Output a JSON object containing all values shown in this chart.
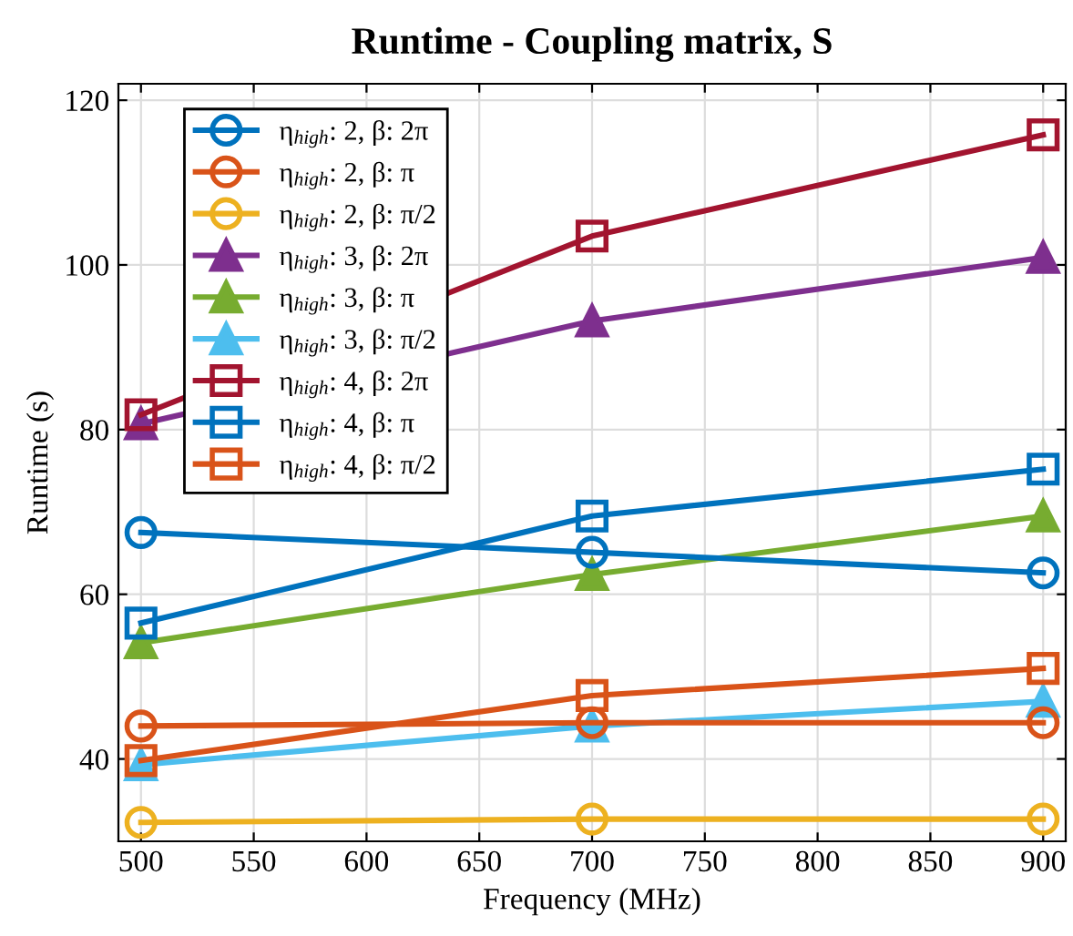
{
  "chart_data": {
    "type": "line",
    "title": "Runtime - Coupling matrix, S",
    "xlabel": "Frequency (MHz)",
    "ylabel": "Runtime (s)",
    "x": [
      500,
      700,
      900
    ],
    "xlim": [
      490,
      910
    ],
    "xticks": [
      500,
      550,
      600,
      650,
      700,
      750,
      800,
      850,
      900
    ],
    "ylim": [
      30,
      122
    ],
    "yticks": [
      40,
      60,
      80,
      100,
      120
    ],
    "grid": true,
    "legend": "top left",
    "line_style": "solid",
    "series": [
      {
        "name": "η$_{high}$: 2, β: 2π",
        "color": "#0072bd",
        "marker": "circle",
        "values": [
          67.5,
          65.1,
          62.6
        ]
      },
      {
        "name": "η$_{high}$: 2, β: π",
        "color": "#d95319",
        "marker": "circle",
        "values": [
          44.0,
          44.4,
          44.4
        ]
      },
      {
        "name": "η$_{high}$: 2, β: π/2",
        "color": "#edb120",
        "marker": "circle",
        "values": [
          32.3,
          32.7,
          32.7
        ]
      },
      {
        "name": "η$_{high}$: 3, β: 2π",
        "color": "#7e2f8e",
        "marker": "triangle",
        "values": [
          80.7,
          93.2,
          100.9
        ]
      },
      {
        "name": "η$_{high}$: 3, β: π",
        "color": "#77ac30",
        "marker": "triangle",
        "values": [
          54.1,
          62.4,
          69.5
        ]
      },
      {
        "name": "η$_{high}$: 3, β: π/2",
        "color": "#4dbeee",
        "marker": "triangle",
        "values": [
          39.3,
          44.0,
          47.0
        ]
      },
      {
        "name": "η$_{high}$: 4, β: 2π",
        "color": "#a2142f",
        "marker": "square",
        "values": [
          81.8,
          103.5,
          115.8
        ]
      },
      {
        "name": "η$_{high}$: 4, β: π",
        "color": "#0072bd",
        "marker": "square",
        "values": [
          56.5,
          69.5,
          75.2
        ]
      },
      {
        "name": "η$_{high}$: 4, β: π/2",
        "color": "#d95319",
        "marker": "square",
        "values": [
          39.8,
          47.7,
          51.0
        ]
      }
    ]
  }
}
